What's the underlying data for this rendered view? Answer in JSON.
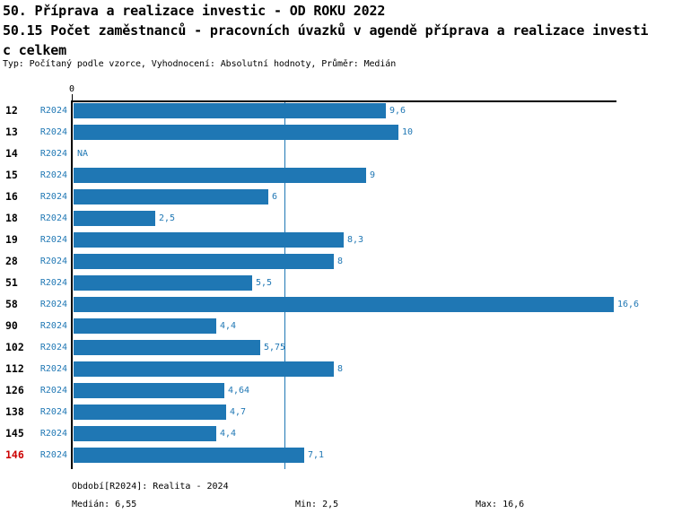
{
  "header": {
    "title_line1": "50. Příprava a realizace investic - OD ROKU 2022",
    "title_line2": "50.15 Počet zaměstnanců - pracovních úvazků v agendě příprava a realizace investi",
    "title_line3": "c celkem",
    "meta": "Typ: Počítaný podle vzorce, Vyhodnocení: Absolutní hodnoty, Průměr: Medián"
  },
  "axis": {
    "zero_label": "0"
  },
  "chart_data": {
    "type": "bar",
    "orientation": "horizontal",
    "title": "50.15 Počet zaměstnanců - pracovních úvazků v agendě příprava a realizace investic celkem",
    "categories": [
      "12",
      "13",
      "14",
      "15",
      "16",
      "18",
      "19",
      "28",
      "51",
      "58",
      "90",
      "102",
      "112",
      "126",
      "138",
      "145",
      "146"
    ],
    "series": [
      {
        "name": "R2024",
        "values": [
          9.6,
          10,
          null,
          9,
          6,
          2.5,
          8.3,
          8,
          5.5,
          16.6,
          4.4,
          5.75,
          8,
          4.64,
          4.7,
          4.4,
          7.1
        ]
      }
    ],
    "value_labels": [
      "9,6",
      "10",
      "NA",
      "9",
      "6",
      "2,5",
      "8,3",
      "8",
      "5,5",
      "16,6",
      "4,4",
      "5,75",
      "8",
      "4,64",
      "4,7",
      "4,4",
      "7,1"
    ],
    "na_label": "NA",
    "highlighted_categories": [
      "146"
    ],
    "median": 6.55,
    "xlim": [
      0,
      16.75
    ],
    "grid": false,
    "bar_color": "#1f77b4",
    "text_color": "#1f77b4",
    "median_line_color": "#1f77b4",
    "highlight_color": "#cc0000"
  },
  "footer": {
    "period": "Období[R2024]: Realita - 2024",
    "median": "Medián: 6,55",
    "min": "Min: 2,5",
    "max": "Max: 16,6"
  }
}
